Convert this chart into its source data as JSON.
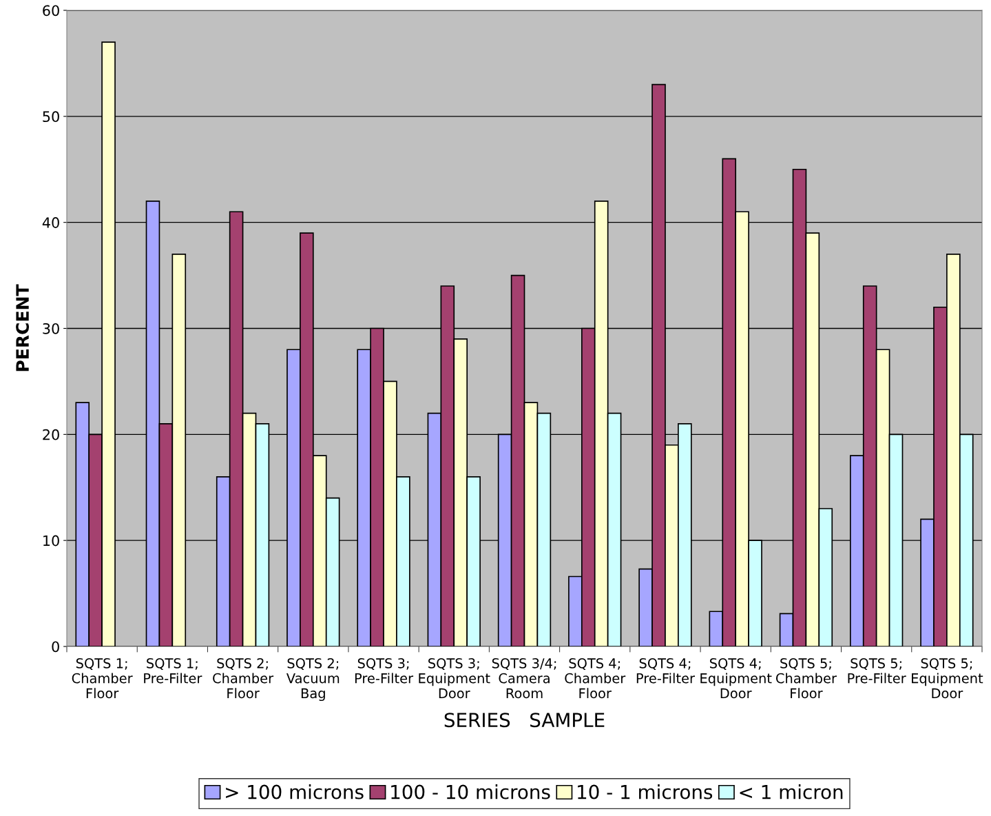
{
  "chart_data": {
    "type": "bar",
    "xlabel": "SERIES   SAMPLE",
    "ylabel": "PERCENT",
    "categories": [
      "SQTS 1;\nChamber\nFloor",
      "SQTS 1;\nPre-Filter",
      "SQTS 2;\nChamber\nFloor",
      "SQTS 2;\nVacuum\nBag",
      "SQTS 3;\nPre-Filter",
      "SQTS 3;\nEquipment\nDoor",
      "SQTS 3/4;\nCamera\nRoom",
      "SQTS 4;\nChamber\nFloor",
      "SQTS 4;\nPre-Filter",
      "SQTS 4;\nEquipment\nDoor",
      "SQTS 5;\nChamber\nFloor",
      "SQTS 5;\nPre-Filter",
      "SQTS 5;\nEquipment\nDoor"
    ],
    "series": [
      {
        "name": "> 100 microns",
        "color": "#a6a6ff",
        "values": [
          23,
          42,
          16,
          28,
          28,
          22,
          20,
          6.6,
          7.3,
          3.3,
          3.1,
          18,
          12
        ]
      },
      {
        "name": "100 - 10 microns",
        "color": "#a4416f",
        "values": [
          20,
          21,
          41,
          39,
          30,
          34,
          35,
          30,
          53,
          46,
          45,
          34,
          32
        ]
      },
      {
        "name": "10 - 1 microns",
        "color": "#ffffcc",
        "values": [
          57,
          37,
          22,
          18,
          25,
          29,
          23,
          42,
          19,
          41,
          39,
          28,
          37
        ]
      },
      {
        "name": "< 1 micron",
        "color": "#ccffff",
        "values": [
          null,
          null,
          21,
          14,
          16,
          16,
          22,
          22,
          21,
          10,
          13,
          20,
          20
        ]
      }
    ],
    "ylim": [
      0,
      60
    ],
    "yticks": [
      0,
      10,
      20,
      30,
      40,
      50,
      60
    ],
    "grid": "y",
    "legend": "bottom"
  }
}
